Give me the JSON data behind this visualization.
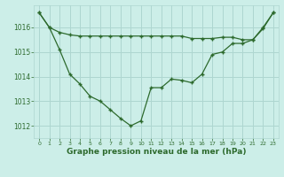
{
  "line1_x": [
    0,
    1,
    2,
    3,
    4,
    5,
    6,
    7,
    8,
    9,
    10,
    11,
    12,
    13,
    14,
    15,
    16,
    17,
    18,
    19,
    20,
    21,
    22,
    23
  ],
  "line1_y": [
    1016.6,
    1016.0,
    1015.8,
    1015.7,
    1015.65,
    1015.65,
    1015.65,
    1015.65,
    1015.65,
    1015.65,
    1015.65,
    1015.65,
    1015.65,
    1015.65,
    1015.65,
    1015.55,
    1015.55,
    1015.55,
    1015.6,
    1015.6,
    1015.5,
    1015.5,
    1015.95,
    1016.6
  ],
  "line2_x": [
    0,
    1,
    2,
    3,
    4,
    5,
    6,
    7,
    8,
    9,
    10,
    11,
    12,
    13,
    14,
    15,
    16,
    17,
    18,
    19,
    20,
    21,
    22,
    23
  ],
  "line2_y": [
    1016.6,
    1016.0,
    1015.1,
    1014.1,
    1013.7,
    1013.2,
    1013.0,
    1012.65,
    1012.3,
    1012.0,
    1012.2,
    1013.55,
    1013.55,
    1013.9,
    1013.85,
    1013.75,
    1014.1,
    1014.9,
    1015.0,
    1015.35,
    1015.35,
    1015.5,
    1016.0,
    1016.6
  ],
  "line_color": "#2d6a2d",
  "bg_color": "#cceee8",
  "grid_major_color": "#aed6d0",
  "grid_minor_color": "#bde4de",
  "xlabel": "Graphe pression niveau de la mer (hPa)",
  "xlabel_color": "#2d6a2d",
  "tick_color": "#2d6a2d",
  "ylim": [
    1011.5,
    1016.9
  ],
  "xlim": [
    -0.5,
    23.5
  ],
  "yticks": [
    1012,
    1013,
    1014,
    1015,
    1016
  ],
  "xticks": [
    0,
    1,
    2,
    3,
    4,
    5,
    6,
    7,
    8,
    9,
    10,
    11,
    12,
    13,
    14,
    15,
    16,
    17,
    18,
    19,
    20,
    21,
    22,
    23
  ],
  "figsize": [
    3.2,
    2.0
  ],
  "dpi": 100
}
